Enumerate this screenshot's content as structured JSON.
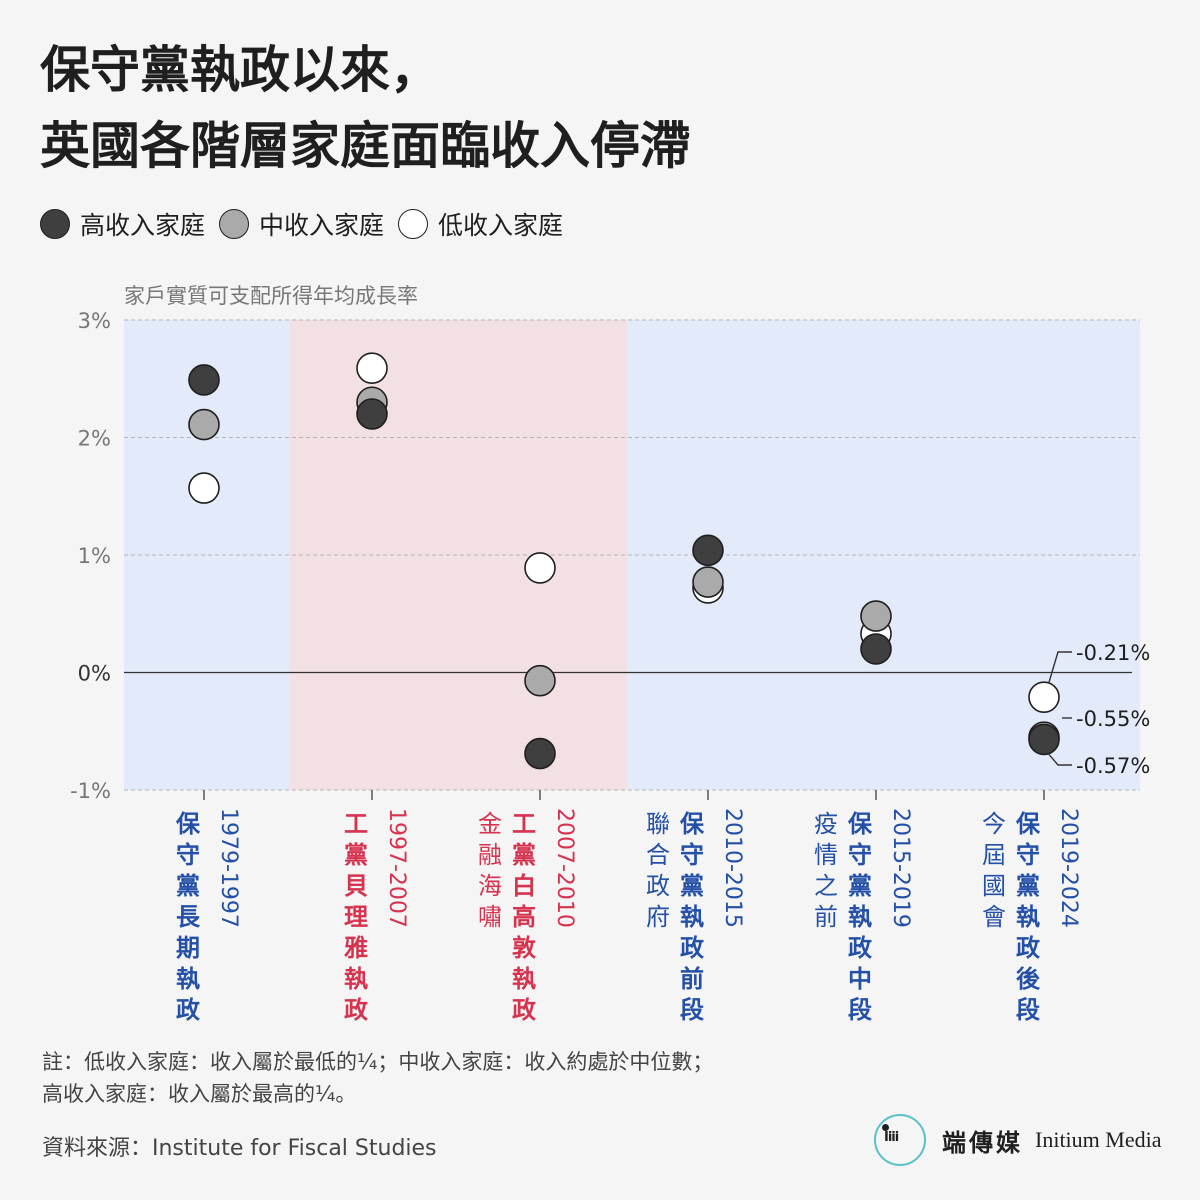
{
  "title_lines": [
    "保守黨執政以來，",
    "英國各階層家庭面臨收入停滯"
  ],
  "colors": {
    "high": "#3f3f3f",
    "mid": "#aaaaaa",
    "low": "#ffffff",
    "conservative_band": "#e3ebfb",
    "labour_band": "#f3e0e3",
    "conservative_text": "#2450a8",
    "labour_text": "#d6334f"
  },
  "legend": [
    {
      "key": "high",
      "label": "高收入家庭"
    },
    {
      "key": "mid",
      "label": "中收入家庭"
    },
    {
      "key": "low",
      "label": "低收入家庭"
    }
  ],
  "chart_data": {
    "type": "scatter",
    "ylabel": "家戶實質可支配所得年均成長率",
    "ylim": [
      -1,
      3
    ],
    "yticks": [
      3,
      2,
      1,
      0,
      -1
    ],
    "ytick_labels": [
      "3%",
      "2%",
      "1%",
      "0%",
      "-1%"
    ],
    "grid": true,
    "periods": [
      {
        "years": "1979-1997",
        "party": "conservative",
        "label": "保守黨長期執政",
        "note": ""
      },
      {
        "years": "1997-2007",
        "party": "labour",
        "label": "工黨貝理雅執政",
        "note": ""
      },
      {
        "years": "2007-2010",
        "party": "labour",
        "label": "工黨白高敦執政",
        "note": "金融海嘯"
      },
      {
        "years": "2010-2015",
        "party": "conservative",
        "label": "保守黨執政前段",
        "note": "聯合政府"
      },
      {
        "years": "2015-2019",
        "party": "conservative",
        "label": "保守黨執政中段",
        "note": "疫情之前"
      },
      {
        "years": "2019-2024",
        "party": "conservative",
        "label": "保守黨執政後段",
        "note": "今屆國會"
      }
    ],
    "series": [
      {
        "name": "低收入家庭",
        "key": "low",
        "values": [
          1.57,
          2.59,
          0.89,
          0.72,
          0.33,
          -0.21
        ]
      },
      {
        "name": "中收入家庭",
        "key": "mid",
        "values": [
          2.11,
          2.3,
          -0.07,
          0.77,
          0.48,
          -0.55
        ]
      },
      {
        "name": "高收入家庭",
        "key": "high",
        "values": [
          2.49,
          2.2,
          -0.69,
          1.04,
          0.2,
          -0.57
        ]
      }
    ],
    "annotations": [
      "-0.21%",
      "-0.55%",
      "-0.57%"
    ]
  },
  "notes": [
    "註：低收入家庭：收入屬於最低的¼；中收入家庭：收入約處於中位數；",
    "高收入家庭：收入屬於最高的¼。"
  ],
  "source": "資料來源：Institute for Fiscal Studies",
  "brand": {
    "cn": "端傳媒",
    "en": "Initium Media"
  }
}
